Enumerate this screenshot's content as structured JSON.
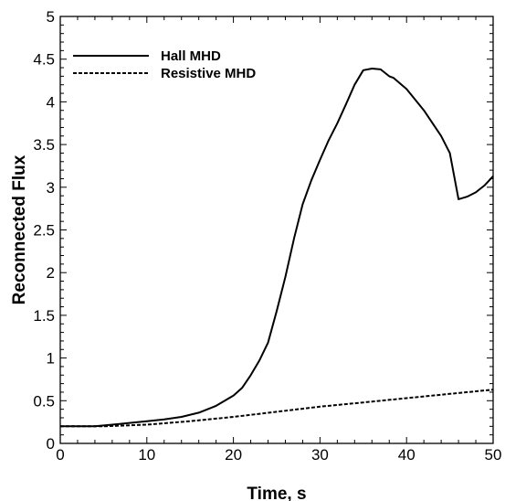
{
  "chart_data": {
    "type": "line",
    "title": "",
    "xlabel": "Time, s",
    "ylabel": "Reconnected Flux",
    "xlim": [
      0,
      50
    ],
    "ylim": [
      0,
      5
    ],
    "x_ticks": [
      "0",
      "10",
      "20",
      "30",
      "40",
      "50"
    ],
    "y_ticks": [
      "0",
      "0.5",
      "1",
      "1.5",
      "2",
      "2.5",
      "3",
      "3.5",
      "4",
      "4.5",
      "5"
    ],
    "grid": false,
    "legend_position": "top-left",
    "series": [
      {
        "name": "Hall MHD",
        "style": "solid",
        "color": "#000000",
        "x": [
          0,
          2,
          4,
          6,
          8,
          10,
          12,
          14,
          16,
          18,
          20,
          21,
          22,
          23,
          24,
          25,
          26,
          27,
          28,
          29,
          30,
          31,
          32,
          33,
          34,
          35,
          36,
          37,
          38,
          38.5,
          40,
          42,
          44,
          45,
          46,
          47,
          48,
          49,
          50
        ],
        "y": [
          0.2,
          0.2,
          0.2,
          0.22,
          0.24,
          0.26,
          0.28,
          0.31,
          0.36,
          0.44,
          0.56,
          0.65,
          0.8,
          0.97,
          1.18,
          1.55,
          1.95,
          2.4,
          2.8,
          3.08,
          3.32,
          3.55,
          3.75,
          3.97,
          4.2,
          4.37,
          4.39,
          4.38,
          4.3,
          4.28,
          4.15,
          3.9,
          3.6,
          3.4,
          2.86,
          2.89,
          2.94,
          3.02,
          3.13
        ]
      },
      {
        "name": "Resistive MHD",
        "style": "dashed",
        "color": "#000000",
        "x": [
          0,
          5,
          10,
          15,
          20,
          25,
          30,
          35,
          40,
          45,
          50
        ],
        "y": [
          0.2,
          0.2,
          0.22,
          0.26,
          0.31,
          0.37,
          0.43,
          0.48,
          0.53,
          0.58,
          0.63
        ]
      }
    ]
  }
}
